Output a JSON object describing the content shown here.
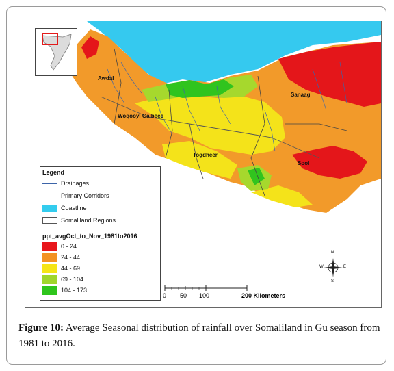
{
  "map": {
    "regions": [
      "Awdal",
      "Woqooyi Galbeed",
      "Togdheer",
      "Sanaag",
      "Sool"
    ],
    "legend": {
      "title": "Legend",
      "items": [
        {
          "label": "Drainages",
          "symbol": "line",
          "color": "#3c64a8"
        },
        {
          "label": "Primary Corridors",
          "symbol": "line",
          "color": "#555555"
        },
        {
          "label": "Coastline",
          "symbol": "fill",
          "color": "#33ccee"
        },
        {
          "label": "Somaliland Regions",
          "symbol": "outline",
          "color": "#555555"
        }
      ],
      "layer_name": "ppt_avgOct_to_Nov_1981to2016",
      "classes": [
        {
          "label": "0 - 24",
          "color": "#e8161b"
        },
        {
          "label": "24 - 44",
          "color": "#f39223"
        },
        {
          "label": "44 - 69",
          "color": "#f5e516"
        },
        {
          "label": "69 - 104",
          "color": "#9fd62c"
        },
        {
          "label": "104 - 173",
          "color": "#2ec51c"
        }
      ]
    },
    "scale": {
      "ticks": [
        "0",
        "50",
        "100",
        "200 Kilometers"
      ]
    },
    "compass": {
      "n": "N",
      "s": "S",
      "e": "E",
      "w": "W"
    }
  },
  "caption": {
    "label": "Figure 10:",
    "text": " Average Seasonal distribution of rainfall over Somaliland in Gu season from 1981 to 2016."
  }
}
